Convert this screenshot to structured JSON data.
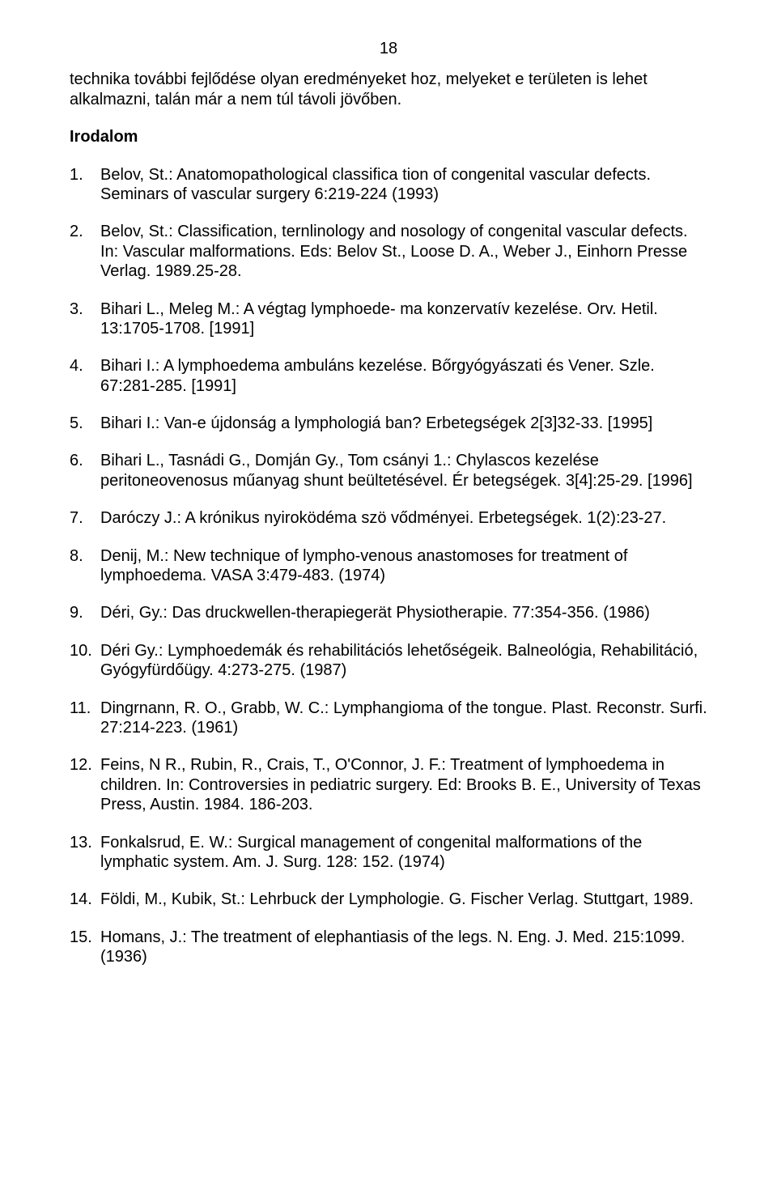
{
  "page_number": "18",
  "intro": "technika további fejlődése olyan eredményeket hoz, melyeket e területen is lehet alkalmazni, talán már a nem túl távoli jövőben.",
  "section_title": "Irodalom",
  "refs": [
    {
      "n": "1.",
      "text": "Belov, St.: Anatomopathological classifica tion of congenital vascular defects. Seminars of vascular surgery 6:219-224 (1993)"
    },
    {
      "n": "2.",
      "text": "Belov, St.: Classification, ternlinology and nosology of congenital vascular defects. In: Vascular malformations. Eds: Belov St., Loose D. A., Weber J., Einhorn Presse Verlag. 1989.25-28."
    },
    {
      "n": "3.",
      "text": "Bihari L., Meleg M.: A végtag lymphoede- ma konzervatív kezelése. Orv. Hetil. 13:1705-1708. [1991]"
    },
    {
      "n": "4.",
      "text": "Bihari I.: A lymphoedema ambuláns kezelése. Bőrgyógyászati és Vener. Szle. 67:281-285. [1991]"
    },
    {
      "n": "5.",
      "text": "Bihari I.: Van-e újdonság a lymphologiá ban? Erbetegségek 2[3]32-33. [1995]"
    },
    {
      "n": "6.",
      "text": "Bihari L., Tasnádi G., Domján Gy., Tom csányi 1.: Chylascos kezelése peritoneovenosus műanyag shunt beültetésével. Ér betegségek. 3[4]:25-29. [1996]"
    },
    {
      "n": "7.",
      "text": "Daróczy J.: A krónikus nyiroködéma szö vődményei. Erbetegségek. 1(2):23-27."
    },
    {
      "n": "8.",
      "text": "Denij, M.: New technique of lympho-venous anastomoses for treatment of lymphoedema. VASA 3:479-483. (1974)"
    },
    {
      "n": "9.",
      "text": "Déri, Gy.: Das druckwellen-therapiegerät Physiotherapie. 77:354-356. (1986)"
    },
    {
      "n": "10.",
      "text": "Déri Gy.: Lymphoedemák és rehabilitációs lehetőségeik. Balneológia, Rehabilitáció, Gyógyfürdőügy. 4:273-275. (1987)"
    },
    {
      "n": "11.",
      "text": "Dingrnann, R. O., Grabb, W. C.: Lymphangioma of the tongue. Plast. Reconstr. Surfi. 27:214-223. (1961)"
    },
    {
      "n": "12.",
      "text": "Feins, N R., Rubin, R., Crais, T., O'Connor, J. F.: Treatment of lymphoedema in children. In: Controversies in pediatric surgery. Ed: Brooks B. E., University of Texas Press, Austin. 1984. 186-203."
    },
    {
      "n": "13.",
      "text": "Fonkalsrud, E. W.: Surgical management of congenital malformations of the lymphatic system. Am. J. Surg. 128: 152. (1974)"
    },
    {
      "n": "14.",
      "text": "Földi, M., Kubik, St.: Lehrbuck der Lymphologie. G. Fischer Verlag. Stuttgart, 1989."
    },
    {
      "n": "15.",
      "text": "Homans, J.: The treatment of elephantiasis of the legs. N. Eng. J. Med. 215:1099. (1936)"
    }
  ]
}
